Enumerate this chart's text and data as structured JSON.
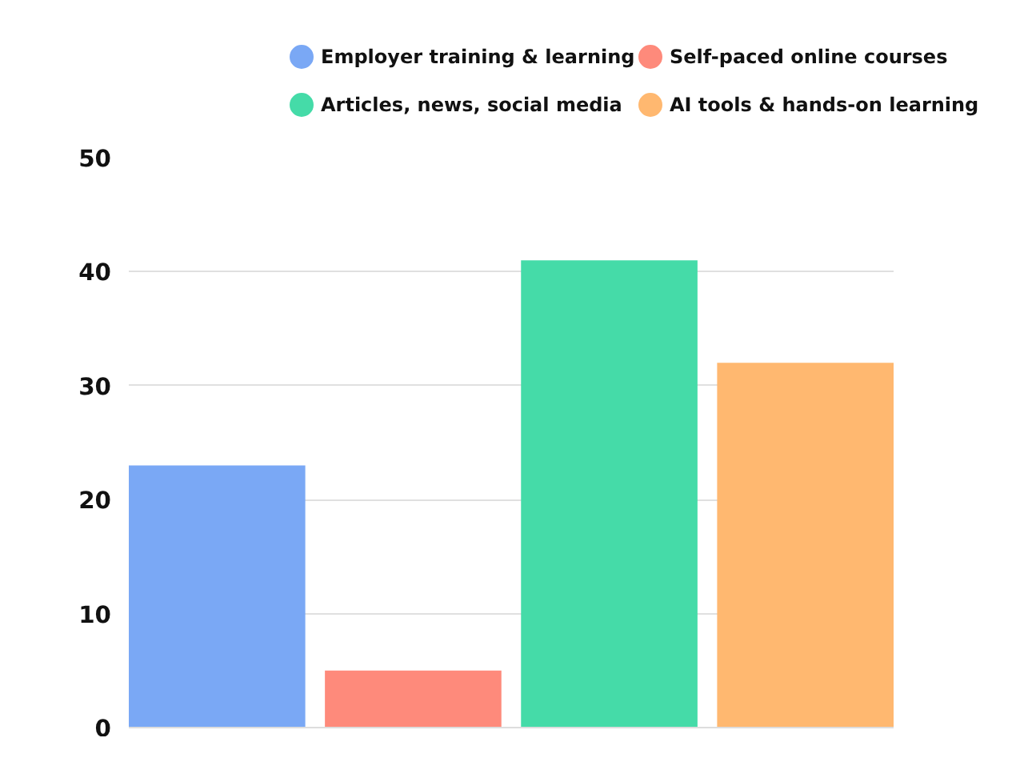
{
  "chart_data": {
    "type": "bar",
    "categories": [
      null
    ],
    "series": [
      {
        "name": "Employer training & learning",
        "color": "#7aa8f5",
        "values": [
          23
        ]
      },
      {
        "name": "Self-paced online courses",
        "color": "#fe8a7b",
        "values": [
          5
        ]
      },
      {
        "name": "Articles, news, social media",
        "color": "#45dba8",
        "values": [
          41
        ]
      },
      {
        "name": "AI tools & hands-on learning",
        "color": "#ffb870",
        "values": [
          32
        ]
      }
    ],
    "ylim": [
      0,
      50
    ],
    "yticks": [
      0,
      10,
      20,
      30,
      40,
      50
    ],
    "grid": "y",
    "legend": "top"
  }
}
